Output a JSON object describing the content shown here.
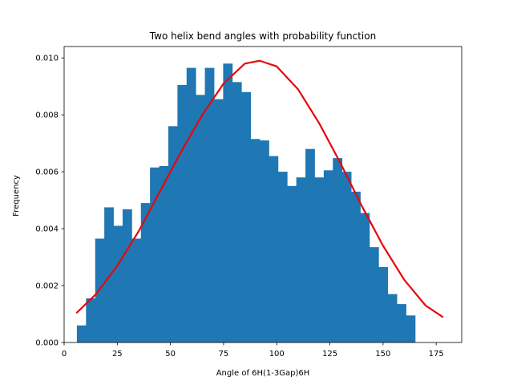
{
  "chart_data": {
    "type": "bar",
    "title": "Two helix bend angles with probability function",
    "xlabel": "Angle of 6H(1-3Gap)6H",
    "ylabel": "Frequency",
    "xlim": [
      0,
      187
    ],
    "ylim": [
      0,
      0.0104
    ],
    "xticks": [
      0,
      25,
      50,
      75,
      100,
      125,
      150,
      175
    ],
    "yticks": [
      0.0,
      0.002,
      0.004,
      0.006,
      0.008,
      0.01
    ],
    "ytick_labels": [
      "0.000",
      "0.002",
      "0.004",
      "0.006",
      "0.008",
      "0.010"
    ],
    "grid": false,
    "legend": "none",
    "histogram": {
      "bin_edges": [
        6,
        10.3,
        14.6,
        18.9,
        23.2,
        27.5,
        31.8,
        36.1,
        40.4,
        44.7,
        49.0,
        53.3,
        57.6,
        61.9,
        66.2,
        70.5,
        74.8,
        79.1,
        83.4,
        87.7,
        92.0,
        96.3,
        100.6,
        104.9,
        109.2,
        113.5,
        117.8,
        122.1,
        126.4,
        130.7,
        135.0,
        139.3,
        143.6,
        147.9,
        152.2,
        156.5,
        160.8,
        165.1,
        169.4,
        173.7,
        178.0
      ],
      "values": [
        0.0006,
        0.00155,
        0.00365,
        0.00475,
        0.0041,
        0.00468,
        0.00365,
        0.0049,
        0.00615,
        0.0062,
        0.0076,
        0.00905,
        0.00965,
        0.0087,
        0.00965,
        0.00855,
        0.0098,
        0.00915,
        0.0088,
        0.00715,
        0.0071,
        0.00655,
        0.006,
        0.0055,
        0.0058,
        0.0068,
        0.0058,
        0.00605,
        0.00648,
        0.006,
        0.0053,
        0.00455,
        0.00335,
        0.00265,
        0.0017,
        0.00135,
        0.00095,
        0.0,
        0.0,
        0.0
      ],
      "color": "#1f77b4"
    },
    "series": [
      {
        "kind": "line",
        "color": "#e6080b",
        "x": [
          6,
          15,
          25,
          35,
          45,
          55,
          65,
          75,
          85,
          92,
          100,
          110,
          120,
          130,
          140,
          150,
          160,
          170,
          178
        ],
        "y": [
          0.00105,
          0.0017,
          0.0027,
          0.0039,
          0.0053,
          0.0067,
          0.008,
          0.0091,
          0.0098,
          0.0099,
          0.0097,
          0.0089,
          0.0077,
          0.0063,
          0.0048,
          0.0034,
          0.0022,
          0.0013,
          0.0009
        ]
      }
    ]
  }
}
